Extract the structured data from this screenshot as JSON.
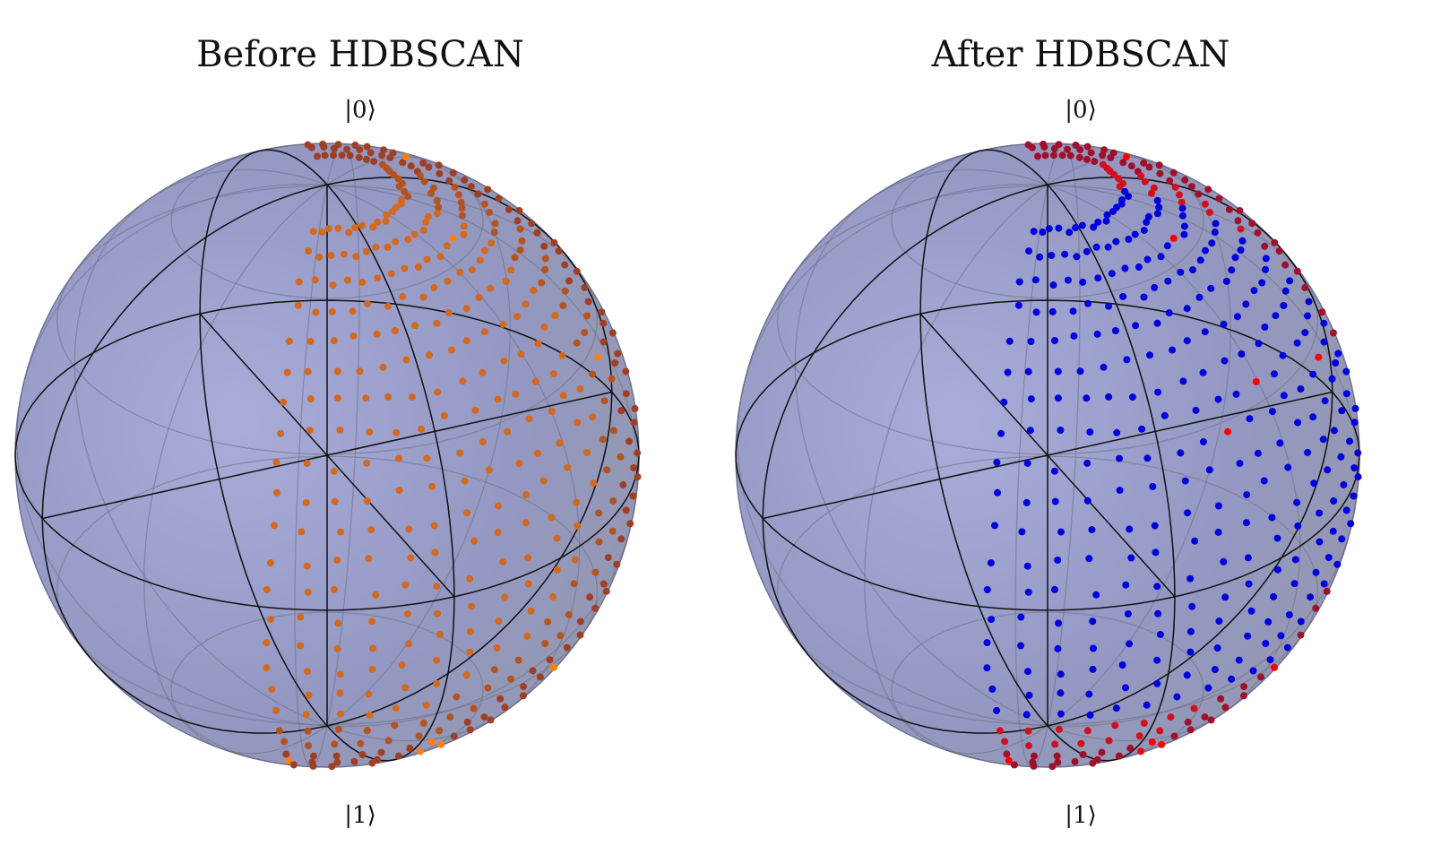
{
  "panels": [
    {
      "id": "before",
      "title": "Before HDBSCAN",
      "top_label": "|0⟩",
      "bottom_label": "|1⟩",
      "point_colors": [
        "#d2691e",
        "#b3531f",
        "#9e3f25",
        "#ff7f0e"
      ]
    },
    {
      "id": "after",
      "title": "After HDBSCAN",
      "top_label": "|0⟩",
      "bottom_label": "|1⟩",
      "point_colors": [
        "#0000dd",
        "#d0101c",
        "#a0102a",
        "#ff0000"
      ]
    }
  ],
  "colors": {
    "sphere_fill": "#8e93c0",
    "sphere_edge": "#6f7294",
    "grid_line": "#6d6f80",
    "axis_line": "#111111"
  }
}
